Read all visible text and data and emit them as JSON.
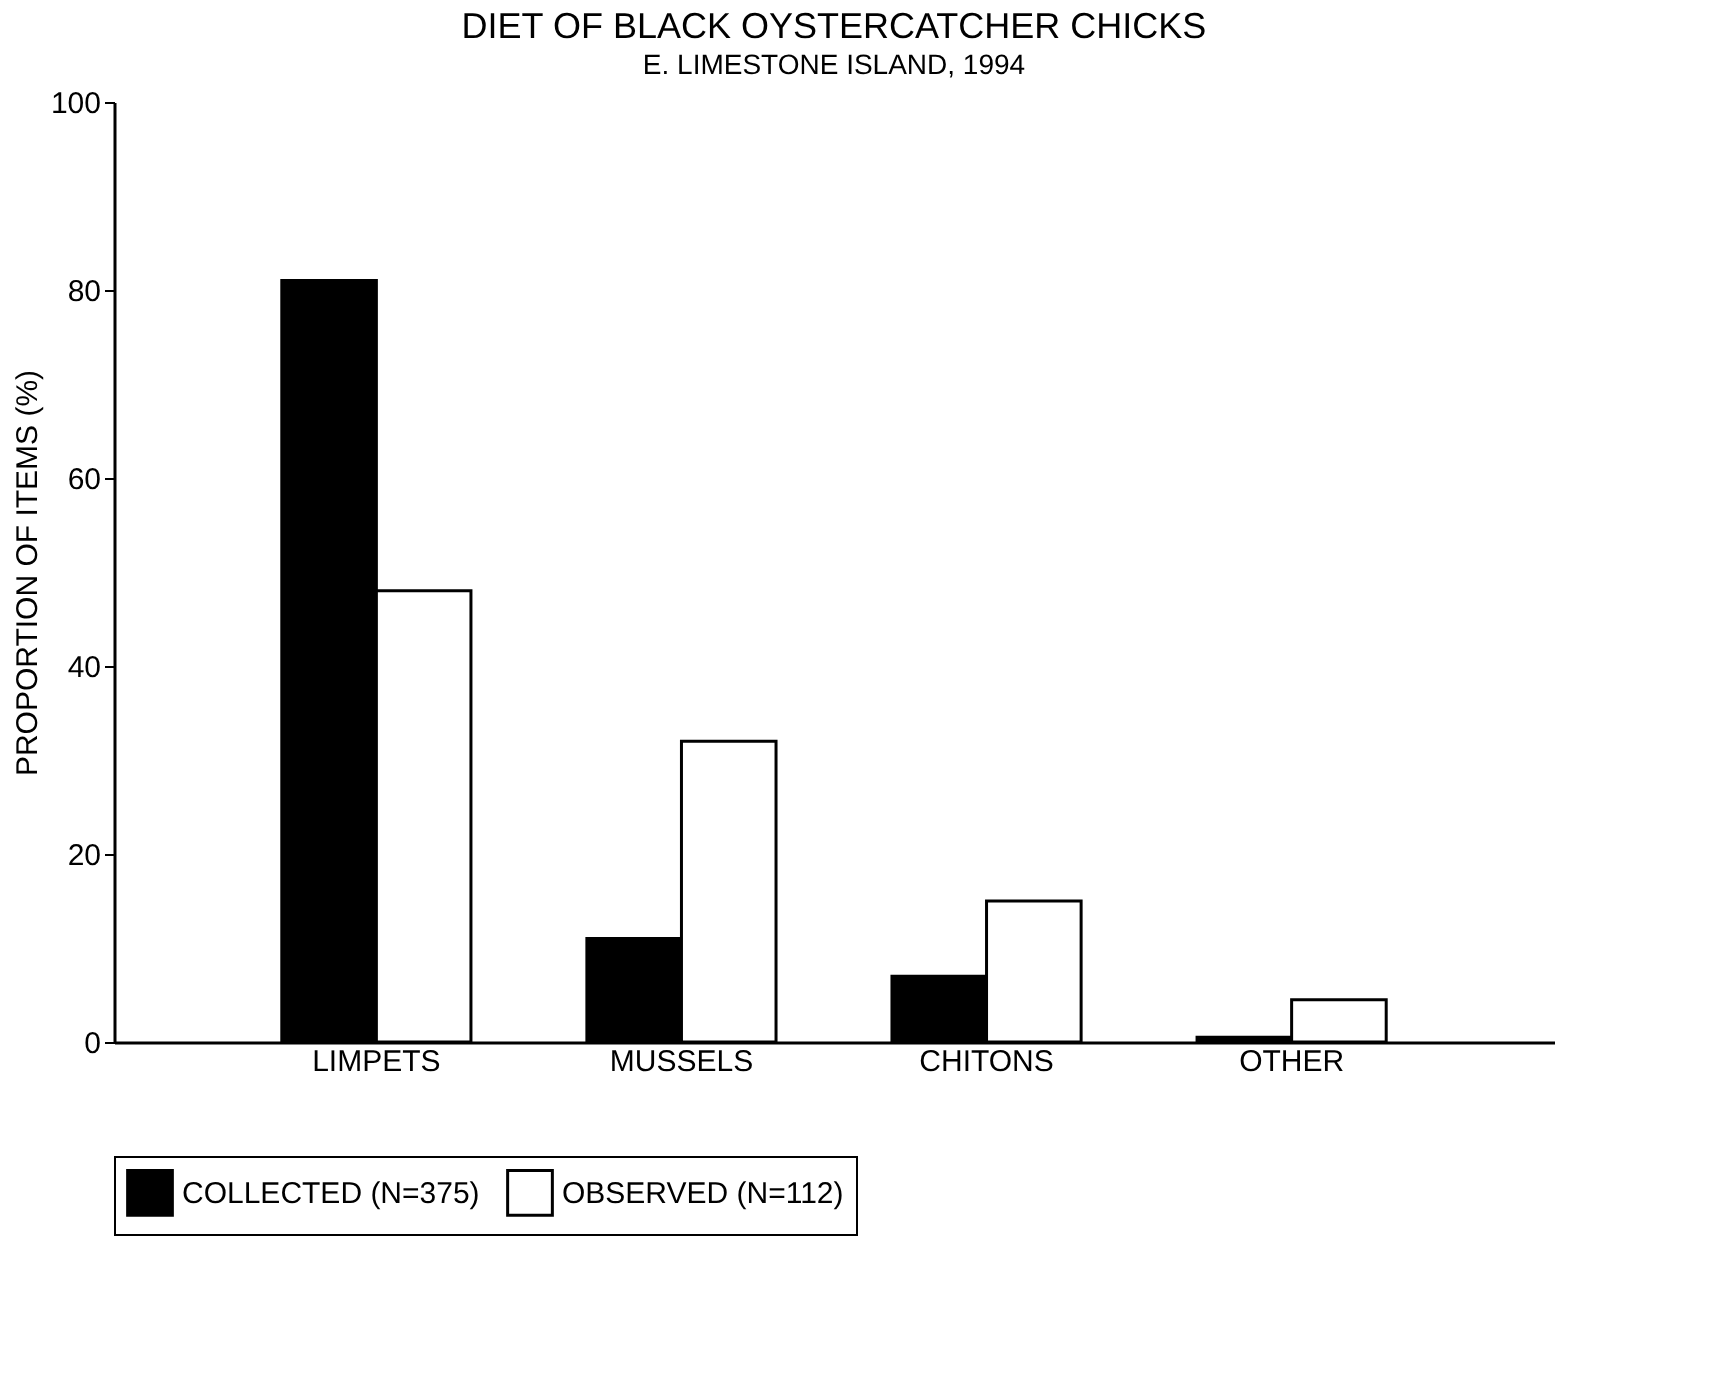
{
  "chart_data": {
    "type": "bar",
    "title": "DIET OF BLACK OYSTERCATCHER CHICKS",
    "subtitle": "E. LIMESTONE ISLAND, 1994",
    "ylabel": "PROPORTION OF ITEMS (%)",
    "categories": [
      "LIMPETS",
      "MUSSELS",
      "CHITONS",
      "OTHER"
    ],
    "series": [
      {
        "name": "COLLECTED (N=375)",
        "color": "#000000",
        "values": [
          81,
          11,
          7,
          0.5
        ]
      },
      {
        "name": "OBSERVED (N=112)",
        "color": "#ffffff",
        "values": [
          48,
          32,
          15,
          4.5
        ]
      }
    ],
    "ylim": [
      0,
      100
    ],
    "yticks": [
      0,
      20,
      40,
      60,
      80,
      100
    ],
    "grid": false,
    "legend": "bottom"
  }
}
